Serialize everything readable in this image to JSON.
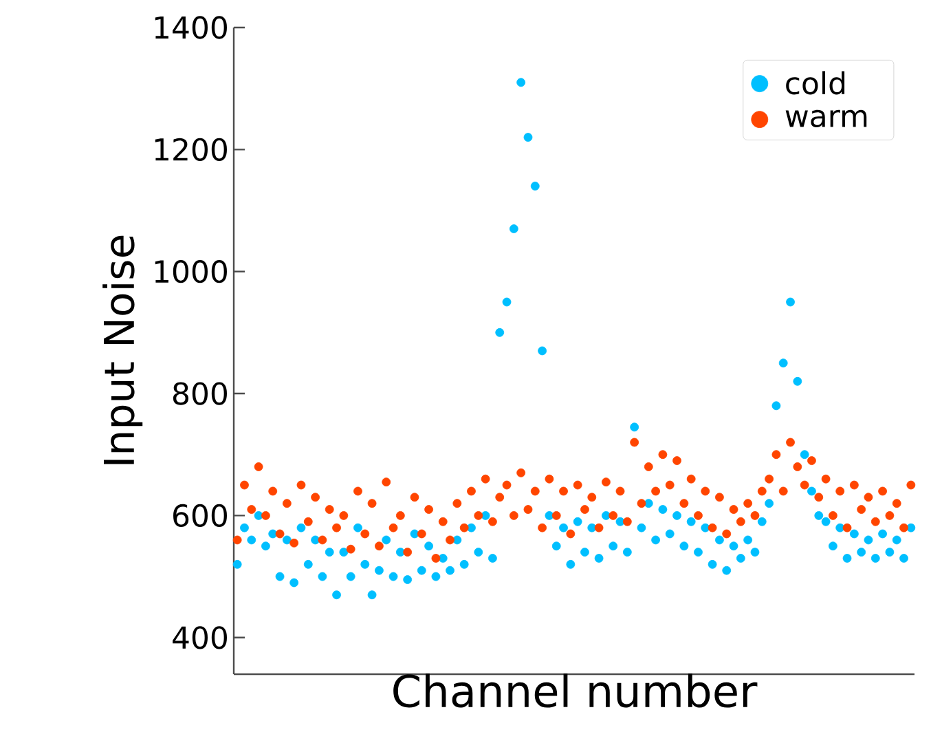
{
  "chart_data": {
    "type": "scatter",
    "xlabel": "Channel number",
    "ylabel": "Input Noise",
    "categories": [
      null,
      null,
      null,
      null,
      null,
      null,
      null,
      null,
      null,
      null,
      null,
      null,
      null,
      null,
      null,
      null,
      null,
      null,
      null,
      null,
      null,
      null,
      null,
      null,
      null,
      null,
      null,
      null,
      null,
      null,
      null,
      null,
      null,
      null,
      null,
      null,
      null,
      null,
      null,
      null,
      null,
      null,
      null,
      null,
      null,
      null,
      null,
      null,
      null,
      null,
      null,
      null,
      null,
      null,
      null,
      null,
      null,
      null,
      null,
      null,
      null,
      null,
      null,
      null,
      null,
      null,
      null,
      null,
      null,
      null,
      null,
      null,
      null,
      null,
      null,
      null,
      null,
      null,
      null,
      null,
      null,
      null,
      null,
      null,
      null,
      null,
      null,
      null,
      null,
      null,
      null,
      null,
      null,
      null,
      null,
      null
    ],
    "series": [
      {
        "name": "cold",
        "color": "#00bfff",
        "values": [
          520,
          580,
          560,
          600,
          550,
          570,
          500,
          560,
          490,
          580,
          520,
          560,
          500,
          540,
          470,
          540,
          500,
          580,
          520,
          470,
          510,
          560,
          500,
          540,
          495,
          570,
          510,
          550,
          500,
          530,
          510,
          560,
          520,
          580,
          540,
          600,
          530,
          900,
          950,
          1070,
          1310,
          1220,
          1140,
          870,
          600,
          550,
          580,
          520,
          590,
          540,
          580,
          530,
          600,
          550,
          590,
          540,
          745,
          580,
          620,
          560,
          610,
          570,
          600,
          550,
          590,
          540,
          580,
          520,
          560,
          510,
          550,
          530,
          560,
          540,
          590,
          620,
          780,
          850,
          950,
          820,
          700,
          640,
          600,
          590,
          550,
          580,
          530,
          570,
          540,
          560,
          530,
          570,
          540,
          560,
          530,
          580
        ]
      },
      {
        "name": "warm",
        "color": "#ff4500",
        "values": [
          560,
          650,
          610,
          680,
          600,
          640,
          570,
          620,
          555,
          650,
          590,
          630,
          560,
          610,
          580,
          600,
          545,
          640,
          570,
          620,
          550,
          655,
          580,
          600,
          540,
          630,
          570,
          610,
          530,
          590,
          560,
          620,
          580,
          640,
          600,
          660,
          590,
          630,
          650,
          600,
          670,
          610,
          640,
          580,
          660,
          600,
          640,
          570,
          650,
          610,
          630,
          580,
          655,
          600,
          640,
          590,
          720,
          620,
          680,
          640,
          700,
          650,
          690,
          620,
          660,
          600,
          640,
          580,
          630,
          570,
          610,
          590,
          620,
          600,
          640,
          660,
          700,
          640,
          720,
          680,
          650,
          690,
          630,
          660,
          600,
          640,
          580,
          650,
          610,
          630,
          590,
          640,
          600,
          620,
          580,
          650
        ]
      }
    ],
    "ylim": [
      340,
      1400
    ],
    "yticks": [
      400,
      600,
      800,
      1000,
      1200,
      1400
    ],
    "legend": "top right",
    "grid": false
  }
}
